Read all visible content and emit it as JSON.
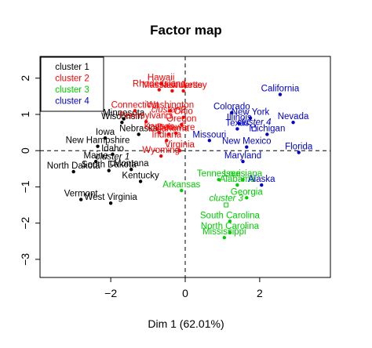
{
  "chart_data": {
    "type": "scatter",
    "title": "Factor map",
    "xlabel": "Dim 1 (62.01%)",
    "ylabel": "",
    "xlim": [
      -3.9,
      3.9
    ],
    "ylim": [
      -3.5,
      2.6
    ],
    "x_ticks": [
      -2,
      0,
      2
    ],
    "y_ticks": [
      -3,
      -2,
      -1,
      0,
      1,
      2
    ],
    "grid": false,
    "reference_lines": {
      "x": 0,
      "y": 0
    },
    "legend_position": "top-left",
    "series": [
      {
        "name": "cluster 1",
        "color": "#000000",
        "centroid": {
          "label": "cluster 1",
          "x": -1.95,
          "y": -0.35
        },
        "points": [
          {
            "label": "Wisconsin",
            "x": -1.7,
            "y": 0.78
          },
          {
            "label": "Minnesota",
            "x": -1.65,
            "y": 0.88
          },
          {
            "label": "Iowa",
            "x": -2.15,
            "y": 0.35
          },
          {
            "label": "Nebraska",
            "x": -1.25,
            "y": 0.45
          },
          {
            "label": "New Hampshire",
            "x": -2.35,
            "y": 0.12
          },
          {
            "label": "Idaho",
            "x": -1.95,
            "y": -0.1
          },
          {
            "label": "Maine",
            "x": -2.4,
            "y": -0.3
          },
          {
            "label": "Montana",
            "x": -1.45,
            "y": -0.52
          },
          {
            "label": "North Dakota",
            "x": -3.0,
            "y": -0.58
          },
          {
            "label": "South Dakota",
            "x": -2.05,
            "y": -0.55
          },
          {
            "label": "Kentucky",
            "x": -1.2,
            "y": -0.85
          },
          {
            "label": "Vermont",
            "x": -2.8,
            "y": -1.35
          },
          {
            "label": "West Virginia",
            "x": -2.0,
            "y": -1.45
          }
        ]
      },
      {
        "name": "cluster 2",
        "color": "#ff0000",
        "centroid": {
          "label": "cluster 2",
          "x": -0.45,
          "y": 0.95
        },
        "points": [
          {
            "label": "Hawaii",
            "x": -0.65,
            "y": 1.85
          },
          {
            "label": "Rhode Island",
            "x": -0.7,
            "y": 1.68
          },
          {
            "label": "Massachusetts",
            "x": -0.35,
            "y": 1.65
          },
          {
            "label": "New Jersey",
            "x": -0.05,
            "y": 1.65
          },
          {
            "label": "Connecticut",
            "x": -1.35,
            "y": 1.1
          },
          {
            "label": "Washington",
            "x": -0.4,
            "y": 1.1
          },
          {
            "label": "Pennsylvania",
            "x": -1.05,
            "y": 0.8
          },
          {
            "label": "Ohio",
            "x": -0.05,
            "y": 0.92
          },
          {
            "label": "Oregon",
            "x": -0.1,
            "y": 0.72
          },
          {
            "label": "Kansas",
            "x": -0.7,
            "y": 0.5
          },
          {
            "label": "Oklahoma",
            "x": -0.45,
            "y": 0.45
          },
          {
            "label": "Delaware",
            "x": -0.25,
            "y": 0.48
          },
          {
            "label": "Indiana",
            "x": -0.5,
            "y": 0.28
          },
          {
            "label": "Virginia",
            "x": -0.15,
            "y": 0.0
          },
          {
            "label": "Wyoming",
            "x": -0.65,
            "y": -0.15
          }
        ]
      },
      {
        "name": "cluster 3",
        "color": "#00cc00",
        "centroid": {
          "label": "cluster 3",
          "x": 1.1,
          "y": -1.5
        },
        "points": [
          {
            "label": "Tennessee",
            "x": 0.9,
            "y": -0.8
          },
          {
            "label": "Louisiana",
            "x": 1.55,
            "y": -0.8
          },
          {
            "label": "Alabama",
            "x": 1.4,
            "y": -0.95
          },
          {
            "label": "Arkansas",
            "x": -0.1,
            "y": -1.1
          },
          {
            "label": "Georgia",
            "x": 1.65,
            "y": -1.3
          },
          {
            "label": "South Carolina",
            "x": 1.2,
            "y": -1.95
          },
          {
            "label": "North Carolina",
            "x": 1.2,
            "y": -2.25
          },
          {
            "label": "Mississippi",
            "x": 1.05,
            "y": -2.4
          }
        ]
      },
      {
        "name": "cluster 4",
        "color": "#0000cc",
        "centroid": {
          "label": "cluster 4",
          "x": 1.85,
          "y": 0.6
        },
        "points": [
          {
            "label": "California",
            "x": 2.55,
            "y": 1.55
          },
          {
            "label": "Colorado",
            "x": 1.25,
            "y": 1.05
          },
          {
            "label": "New York",
            "x": 1.75,
            "y": 0.9
          },
          {
            "label": "Illinois",
            "x": 1.45,
            "y": 0.75
          },
          {
            "label": "Nevada",
            "x": 2.9,
            "y": 0.78
          },
          {
            "label": "Texas",
            "x": 1.4,
            "y": 0.6
          },
          {
            "label": "Missouri",
            "x": 0.65,
            "y": 0.28
          },
          {
            "label": "Michigan",
            "x": 2.2,
            "y": 0.45
          },
          {
            "label": "New Mexico",
            "x": 1.65,
            "y": 0.1
          },
          {
            "label": "Florida",
            "x": 3.05,
            "y": -0.05
          },
          {
            "label": "Maryland",
            "x": 1.55,
            "y": -0.3
          },
          {
            "label": "Alaska",
            "x": 2.05,
            "y": -0.95
          }
        ]
      }
    ]
  }
}
